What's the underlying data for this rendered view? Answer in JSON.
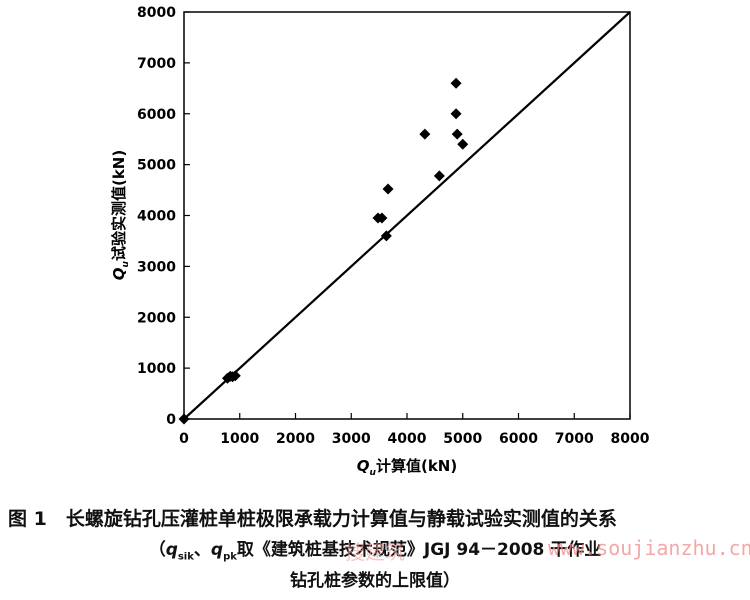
{
  "chart_data": {
    "type": "scatter",
    "xlabel_main": "Q",
    "xlabel_sub": "u",
    "xlabel_rest": "计算值(kN)",
    "ylabel_main": "Q",
    "ylabel_sub": "u",
    "ylabel_rest": "试验实测值(kN)",
    "xlim": [
      0,
      8000
    ],
    "ylim": [
      0,
      8000
    ],
    "xticks": [
      "0",
      "1000",
      "2000",
      "3000",
      "4000",
      "5000",
      "6000",
      "7000",
      "8000"
    ],
    "yticks": [
      "0",
      "1000",
      "2000",
      "3000",
      "4000",
      "5000",
      "6000",
      "7000",
      "8000"
    ],
    "reference_line": [
      [
        0,
        0
      ],
      [
        8000,
        8000
      ]
    ],
    "points": [
      {
        "x": 0,
        "y": 0
      },
      {
        "x": 780,
        "y": 800
      },
      {
        "x": 830,
        "y": 840
      },
      {
        "x": 870,
        "y": 830
      },
      {
        "x": 920,
        "y": 850
      },
      {
        "x": 3480,
        "y": 3950
      },
      {
        "x": 3550,
        "y": 3950
      },
      {
        "x": 3630,
        "y": 3600
      },
      {
        "x": 3660,
        "y": 4520
      },
      {
        "x": 4320,
        "y": 5600
      },
      {
        "x": 4580,
        "y": 4780
      },
      {
        "x": 4880,
        "y": 6600
      },
      {
        "x": 4880,
        "y": 6000
      },
      {
        "x": 4900,
        "y": 5600
      },
      {
        "x": 5000,
        "y": 5400
      }
    ],
    "marker_color": "#000000"
  },
  "caption": {
    "line1": "图 1　长螺旋钻孔压灌桩单桩极限承载力计算值与静载试验实测值的关系",
    "line2": "（q、q取《建筑桩基技术规范》JGJ 94－2008 干作业",
    "line2_a": "（",
    "line2_q1": "q",
    "line2_s1": "sik",
    "line2_mid": "、",
    "line2_q2": "q",
    "line2_s2": "pk",
    "line2_rest": "取《建筑桩基技术规范》JGJ 94－2008 干作业",
    "line3": "钻孔桩参数的上限值）"
  },
  "watermark": {
    "text": "www.soujianzhu.cn",
    "cn": "搜建筑"
  }
}
